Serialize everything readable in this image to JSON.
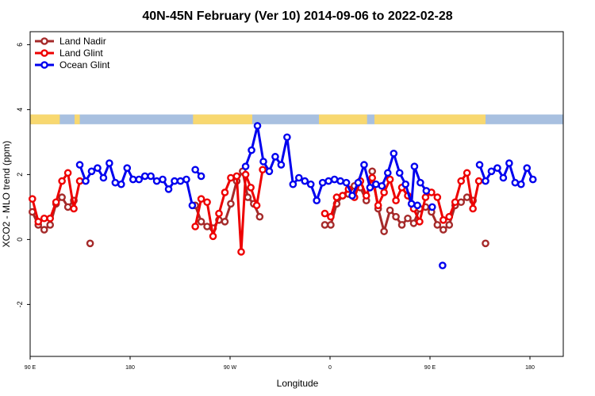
{
  "chart_data": {
    "type": "line",
    "title": "40N-45N February (Ver 10)   2014-09-06 to 2022-02-28",
    "xlabel": "Longitude",
    "ylabel": "XCO2 - MLO trend (ppm)",
    "xlim": [
      0,
      720
    ],
    "ylim": [
      -3.6,
      6.4
    ],
    "x_ticks": [
      {
        "x": 0,
        "label": "90 E"
      },
      {
        "x": 135,
        "label": "180"
      },
      {
        "x": 270,
        "label": "90 W"
      },
      {
        "x": 405,
        "label": "0"
      },
      {
        "x": 540,
        "label": "90 E"
      },
      {
        "x": 675,
        "label": "180"
      }
    ],
    "y_ticks": [
      -2,
      0,
      2,
      4,
      6
    ],
    "grid": false,
    "legend_position": "top-left",
    "land_ocean_band": {
      "y_range": [
        3.55,
        3.85
      ],
      "land_color": "#F8D870",
      "ocean_color": "#A8C0E0",
      "land_segments": [
        [
          0,
          40
        ],
        [
          60,
          67
        ],
        [
          220,
          300
        ],
        [
          390,
          455
        ],
        [
          465,
          615
        ]
      ]
    },
    "series": [
      {
        "name": "Land Nadir",
        "color": "#A52A2A",
        "segments": [
          [
            [
              3,
              0.85
            ],
            [
              11,
              0.45
            ],
            [
              19,
              0.3
            ],
            [
              27,
              0.45
            ],
            [
              35,
              1.1
            ],
            [
              43,
              1.3
            ],
            [
              51,
              1.0
            ],
            [
              59,
              1.2
            ]
          ],
          [
            [
              81,
              -0.12
            ]
          ],
          [
            [
              223,
              1.05
            ],
            [
              231,
              0.55
            ],
            [
              239,
              0.4
            ],
            [
              247,
              0.35
            ],
            [
              255,
              0.6
            ],
            [
              263,
              0.55
            ],
            [
              271,
              1.1
            ],
            [
              279,
              1.8
            ],
            [
              287,
              2.1
            ],
            [
              294,
              1.3
            ],
            [
              302,
              1.1
            ],
            [
              310,
              0.7
            ]
          ],
          [
            [
              398,
              0.45
            ],
            [
              406,
              0.45
            ],
            [
              414,
              1.1
            ],
            [
              422,
              1.35
            ],
            [
              430,
              1.4
            ],
            [
              438,
              1.65
            ],
            [
              446,
              1.6
            ],
            [
              454,
              1.2
            ],
            [
              462,
              2.1
            ],
            [
              470,
              0.95
            ],
            [
              478,
              0.25
            ],
            [
              486,
              0.9
            ],
            [
              494,
              0.7
            ],
            [
              502,
              0.45
            ],
            [
              510,
              0.65
            ],
            [
              518,
              0.5
            ],
            [
              526,
              0.95
            ],
            [
              534,
              1.0
            ],
            [
              542,
              0.85
            ],
            [
              550,
              0.45
            ],
            [
              558,
              0.3
            ],
            [
              566,
              0.45
            ],
            [
              574,
              1.05
            ],
            [
              582,
              1.15
            ],
            [
              590,
              1.3
            ],
            [
              598,
              1.2
            ]
          ],
          [
            [
              615,
              -0.12
            ]
          ]
        ]
      },
      {
        "name": "Land Glint",
        "color": "#EE0000",
        "segments": [
          [
            [
              3,
              1.25
            ],
            [
              11,
              0.55
            ],
            [
              19,
              0.65
            ],
            [
              27,
              0.65
            ],
            [
              35,
              1.15
            ],
            [
              43,
              1.8
            ],
            [
              51,
              2.05
            ],
            [
              59,
              0.95
            ],
            [
              67,
              1.8
            ]
          ],
          [
            [
              223,
              0.4
            ],
            [
              231,
              1.25
            ],
            [
              239,
              1.15
            ],
            [
              247,
              0.1
            ],
            [
              255,
              0.8
            ],
            [
              263,
              1.45
            ],
            [
              271,
              1.9
            ],
            [
              279,
              1.95
            ],
            [
              285,
              -0.38
            ],
            [
              291,
              2.0
            ],
            [
              298,
              1.6
            ],
            [
              306,
              1.05
            ],
            [
              314,
              2.15
            ]
          ],
          [
            [
              398,
              0.8
            ],
            [
              406,
              0.7
            ],
            [
              414,
              1.3
            ],
            [
              422,
              1.35
            ],
            [
              430,
              1.55
            ],
            [
              438,
              1.3
            ],
            [
              446,
              1.8
            ],
            [
              454,
              1.35
            ],
            [
              462,
              1.9
            ],
            [
              470,
              1.05
            ],
            [
              478,
              1.45
            ],
            [
              486,
              1.85
            ],
            [
              494,
              1.2
            ],
            [
              502,
              1.6
            ],
            [
              510,
              1.35
            ],
            [
              518,
              0.95
            ],
            [
              526,
              0.55
            ],
            [
              534,
              1.3
            ],
            [
              542,
              1.45
            ],
            [
              550,
              1.3
            ],
            [
              558,
              0.6
            ],
            [
              566,
              0.7
            ],
            [
              574,
              1.15
            ],
            [
              582,
              1.8
            ],
            [
              590,
              2.05
            ],
            [
              598,
              0.95
            ],
            [
              606,
              1.8
            ]
          ]
        ]
      },
      {
        "name": "Ocean Glint",
        "color": "#0000EE",
        "segments": [
          [
            [
              67,
              2.3
            ],
            [
              75,
              1.8
            ],
            [
              83,
              2.1
            ],
            [
              91,
              2.2
            ],
            [
              99,
              1.9
            ],
            [
              107,
              2.35
            ],
            [
              115,
              1.75
            ],
            [
              123,
              1.7
            ],
            [
              131,
              2.2
            ],
            [
              139,
              1.85
            ],
            [
              147,
              1.85
            ],
            [
              155,
              1.95
            ],
            [
              163,
              1.95
            ],
            [
              171,
              1.8
            ],
            [
              179,
              1.85
            ],
            [
              187,
              1.55
            ],
            [
              195,
              1.8
            ],
            [
              203,
              1.8
            ],
            [
              211,
              1.85
            ],
            [
              219,
              1.05
            ]
          ],
          [
            [
              223,
              2.15
            ],
            [
              231,
              1.95
            ]
          ],
          [
            [
              291,
              2.25
            ],
            [
              299,
              2.75
            ],
            [
              307,
              3.5
            ],
            [
              315,
              2.4
            ],
            [
              323,
              2.1
            ],
            [
              331,
              2.55
            ],
            [
              339,
              2.3
            ],
            [
              347,
              3.15
            ],
            [
              355,
              1.7
            ],
            [
              363,
              1.9
            ],
            [
              371,
              1.8
            ],
            [
              379,
              1.7
            ],
            [
              387,
              1.2
            ],
            [
              395,
              1.75
            ],
            [
              403,
              1.8
            ],
            [
              411,
              1.85
            ],
            [
              419,
              1.8
            ],
            [
              427,
              1.75
            ],
            [
              435,
              1.35
            ],
            [
              443,
              1.75
            ],
            [
              451,
              2.3
            ],
            [
              459,
              1.6
            ],
            [
              467,
              1.7
            ],
            [
              475,
              1.65
            ],
            [
              483,
              2.05
            ],
            [
              491,
              2.65
            ],
            [
              499,
              2.05
            ],
            [
              507,
              1.7
            ],
            [
              515,
              1.1
            ],
            [
              519,
              2.25
            ],
            [
              527,
              1.75
            ],
            [
              535,
              1.5
            ]
          ],
          [
            [
              523,
              1.05
            ]
          ],
          [
            [
              543,
              1.0
            ]
          ],
          [
            [
              557,
              -0.8
            ]
          ],
          [
            [
              607,
              2.3
            ],
            [
              615,
              1.8
            ],
            [
              623,
              2.1
            ],
            [
              631,
              2.2
            ],
            [
              639,
              1.9
            ],
            [
              647,
              2.35
            ],
            [
              655,
              1.75
            ],
            [
              663,
              1.7
            ],
            [
              671,
              2.2
            ],
            [
              679,
              1.85
            ]
          ]
        ]
      }
    ]
  }
}
